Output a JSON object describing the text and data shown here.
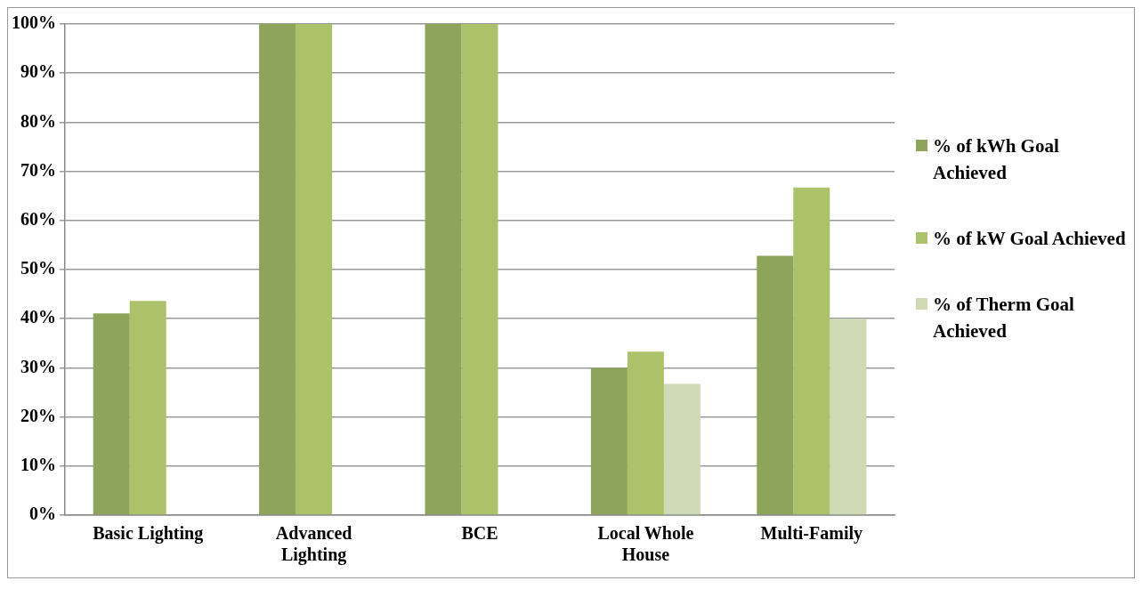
{
  "chart_data": {
    "type": "bar",
    "categories": [
      "Basic Lighting",
      "Advanced Lighting",
      "BCE",
      "Local Whole House",
      "Multi-Family"
    ],
    "series": [
      {
        "name": "% of kWh Goal Achieved",
        "color": "#8ea45a",
        "values": [
          41.1,
          100,
          100,
          30,
          52.8
        ]
      },
      {
        "name": "% of kW Goal Achieved",
        "color": "#abc26b",
        "values": [
          43.6,
          100,
          100,
          33.3,
          66.7
        ]
      },
      {
        "name": "% of Therm Goal Achieved",
        "color": "#cfdab5",
        "values": [
          null,
          null,
          null,
          26.7,
          40
        ]
      }
    ],
    "ylim": [
      0,
      100
    ],
    "yticks": [
      {
        "value": 0,
        "label": "0%"
      },
      {
        "value": 10,
        "label": "10%"
      },
      {
        "value": 20,
        "label": "20%"
      },
      {
        "value": 30,
        "label": "30%"
      },
      {
        "value": 40,
        "label": "40%"
      },
      {
        "value": 50,
        "label": "50%"
      },
      {
        "value": 60,
        "label": "60%"
      },
      {
        "value": 70,
        "label": "70%"
      },
      {
        "value": 80,
        "label": "80%"
      },
      {
        "value": 90,
        "label": "90%"
      },
      {
        "value": 100,
        "label": "100%"
      }
    ],
    "grid": "y",
    "legend": "right"
  }
}
